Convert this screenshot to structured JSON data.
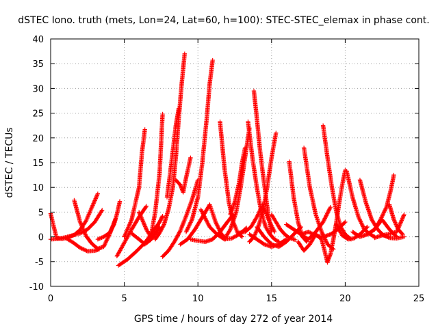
{
  "chart_data": {
    "type": "scatter",
    "title": "dSTEC Iono. truth (mets, Lon=24, Lat=60, h=100): STEC-STEC_elemax in phase cont.",
    "xlabel": "GPS time / hours of day 272 of year 2014",
    "ylabel": "dSTEC  / TECUs",
    "xlim": [
      0,
      25
    ],
    "ylim": [
      -10,
      40
    ],
    "x_ticks": [
      "0",
      "5",
      "10",
      "15",
      "20",
      "25"
    ],
    "y_ticks": [
      "-10",
      "-5",
      "0",
      "5",
      "10",
      "15",
      "20",
      "25",
      "30",
      "35",
      "40"
    ],
    "grid": true,
    "marker": "+",
    "marker_color": "#ff0000",
    "series": [
      {
        "x": [
          0.0,
          0.4,
          0.8,
          1.2,
          1.6,
          2.0,
          2.4,
          2.8,
          3.2
        ],
        "y": [
          4.7,
          -0.2,
          -0.4,
          -0.1,
          0.4,
          1.4,
          3.2,
          6.0,
          8.7
        ]
      },
      {
        "x": [
          0.0,
          0.5,
          1.0,
          1.5,
          2.0,
          2.5,
          3.0,
          3.5
        ],
        "y": [
          -0.5,
          -0.4,
          -0.1,
          0.3,
          0.7,
          1.5,
          3.0,
          5.4
        ]
      },
      {
        "x": [
          1.6,
          2.0,
          2.4,
          2.8,
          3.2,
          3.6,
          4.0,
          4.4
        ],
        "y": [
          7.4,
          3.0,
          0.2,
          -1.4,
          -2.4,
          -2.0,
          0.5,
          3.6
        ]
      },
      {
        "x": [
          1.0,
          1.5,
          2.0,
          2.5,
          3.0,
          3.3
        ],
        "y": [
          -0.2,
          -1.1,
          -2.2,
          -2.9,
          -2.8,
          -2.5
        ]
      },
      {
        "x": [
          3.2,
          3.6,
          4.0,
          4.3,
          4.5,
          4.7
        ],
        "y": [
          -0.5,
          0.0,
          0.8,
          2.5,
          4.6,
          7.2
        ]
      },
      {
        "x": [
          4.5,
          5.0,
          5.5,
          6.0,
          6.5
        ],
        "y": [
          -3.9,
          -1.2,
          1.5,
          4.0,
          6.2
        ]
      },
      {
        "x": [
          4.6,
          5.2,
          5.8,
          6.4,
          6.9,
          7.4,
          7.6
        ],
        "y": [
          -5.8,
          -4.6,
          -3.0,
          -1.2,
          0.8,
          3.0,
          4.2
        ]
      },
      {
        "x": [
          5.0,
          5.5,
          6.0,
          6.2,
          6.4
        ],
        "y": [
          0.0,
          3.5,
          10.0,
          17.0,
          21.7
        ]
      },
      {
        "x": [
          5.5,
          6.0,
          6.4,
          6.8,
          7.2,
          7.4
        ],
        "y": [
          0.7,
          -0.5,
          -1.5,
          -0.6,
          1.0,
          2.0
        ]
      },
      {
        "x": [
          6.0,
          6.5,
          6.8,
          7.1,
          7.4,
          7.6
        ],
        "y": [
          5.0,
          1.5,
          0.0,
          5.0,
          13.0,
          24.8
        ]
      },
      {
        "x": [
          7.1,
          7.4,
          7.7,
          8.0,
          8.3,
          8.5,
          8.7,
          8.9,
          9.1
        ],
        "y": [
          -0.5,
          0.8,
          2.5,
          5.5,
          10.0,
          16.0,
          24.0,
          31.0,
          37.0
        ]
      },
      {
        "x": [
          7.6,
          8.0,
          8.4,
          8.8,
          9.2,
          9.6,
          10.0
        ],
        "y": [
          -4.0,
          -2.8,
          -1.0,
          1.2,
          4.2,
          7.5,
          11.5
        ]
      },
      {
        "x": [
          7.9,
          8.1,
          8.3,
          8.5,
          8.7
        ],
        "y": [
          8.0,
          12.5,
          17.5,
          22.5,
          26.0
        ]
      },
      {
        "x": [
          8.5,
          8.8,
          9.0,
          9.2,
          9.5
        ],
        "y": [
          11.5,
          10.5,
          9.0,
          12.0,
          16.0
        ]
      },
      {
        "x": [
          8.8,
          9.3,
          9.8,
          10.3,
          10.8,
          11.2,
          11.6,
          11.8
        ],
        "y": [
          -1.5,
          -0.5,
          1.5,
          4.0,
          6.5,
          3.0,
          0.5,
          0.0
        ]
      },
      {
        "x": [
          9.2,
          9.6,
          10.0,
          10.3,
          10.6,
          10.8,
          11.0
        ],
        "y": [
          1.0,
          3.5,
          8.0,
          15.0,
          24.0,
          31.0,
          35.7
        ]
      },
      {
        "x": [
          9.5,
          10.0,
          10.5,
          11.0,
          11.5,
          12.0,
          12.4
        ],
        "y": [
          -0.5,
          -0.8,
          -1.0,
          -0.5,
          1.0,
          3.0,
          4.5
        ]
      },
      {
        "x": [
          10.2,
          10.8,
          11.3,
          11.8,
          12.3,
          12.8,
          13.3
        ],
        "y": [
          5.5,
          2.0,
          0.5,
          -0.5,
          -0.3,
          0.5,
          1.8
        ]
      },
      {
        "x": [
          11.5,
          11.8,
          12.1,
          12.4,
          12.7,
          13.0
        ],
        "y": [
          23.3,
          14.0,
          7.0,
          3.0,
          0.8,
          0.0
        ]
      },
      {
        "x": [
          11.8,
          12.2,
          12.6,
          12.9,
          13.2,
          13.5
        ],
        "y": [
          -0.5,
          1.5,
          5.0,
          10.0,
          16.0,
          22.0
        ]
      },
      {
        "x": [
          12.2,
          12.5,
          12.8,
          13.0,
          13.2
        ],
        "y": [
          4.5,
          7.0,
          11.0,
          15.0,
          18.0
        ]
      },
      {
        "x": [
          12.8,
          13.2,
          13.6,
          14.0,
          14.4,
          14.8,
          15.2
        ],
        "y": [
          0.8,
          1.0,
          2.0,
          4.0,
          6.5,
          3.5,
          1.0
        ]
      },
      {
        "x": [
          13.4,
          13.7,
          14.0,
          14.3,
          14.6,
          14.9,
          15.2,
          15.5
        ],
        "y": [
          23.3,
          16.0,
          10.0,
          5.0,
          2.0,
          0.5,
          -0.5,
          -1.0
        ]
      },
      {
        "x": [
          13.8,
          14.0,
          14.2,
          14.4,
          14.6,
          14.8,
          15.0
        ],
        "y": [
          29.5,
          24.0,
          18.0,
          13.0,
          8.5,
          4.0,
          1.0
        ]
      },
      {
        "x": [
          13.5,
          13.8,
          14.1,
          14.4,
          14.7,
          15.0,
          15.3
        ],
        "y": [
          -1.0,
          0.0,
          2.0,
          5.0,
          10.0,
          16.0,
          21.0
        ]
      },
      {
        "x": [
          14.0,
          14.5,
          15.0,
          15.5,
          16.0,
          16.5,
          17.0
        ],
        "y": [
          2.0,
          0.0,
          -1.5,
          -2.0,
          -1.0,
          0.5,
          2.0
        ]
      },
      {
        "x": [
          13.5,
          14.0,
          14.5,
          15.0,
          15.5,
          16.0
        ],
        "y": [
          0.5,
          -0.5,
          -1.5,
          -2.0,
          -1.5,
          -0.5
        ]
      },
      {
        "x": [
          15.0,
          15.3,
          15.6,
          15.9,
          16.2,
          16.6
        ],
        "y": [
          4.5,
          3.0,
          1.5,
          0.5,
          -0.2,
          -0.6
        ]
      },
      {
        "x": [
          16.2,
          16.5,
          16.8,
          17.1,
          17.4
        ],
        "y": [
          15.2,
          8.0,
          3.0,
          0.0,
          -1.0
        ]
      },
      {
        "x": [
          16.0,
          16.5,
          17.0,
          17.5,
          18.0,
          18.5,
          19.0
        ],
        "y": [
          2.5,
          1.5,
          0.5,
          -0.5,
          1.0,
          3.0,
          6.0
        ]
      },
      {
        "x": [
          17.0,
          17.5,
          18.0,
          18.5,
          19.0,
          19.5,
          20.0
        ],
        "y": [
          0.5,
          1.0,
          0.3,
          0.0,
          0.5,
          1.5,
          3.0
        ]
      },
      {
        "x": [
          17.2,
          17.6,
          18.0,
          18.4,
          18.8,
          19.2
        ],
        "y": [
          18.0,
          10.0,
          4.5,
          1.0,
          -1.5,
          -2.5
        ]
      },
      {
        "x": [
          16.8,
          17.2,
          17.6,
          18.0,
          18.4,
          18.8
        ],
        "y": [
          -1.0,
          -2.8,
          -1.5,
          0.5,
          -0.5,
          -5.2
        ]
      },
      {
        "x": [
          18.5,
          18.8,
          19.1,
          19.4,
          19.7,
          20.0,
          20.4
        ],
        "y": [
          22.5,
          16.0,
          10.0,
          5.0,
          2.0,
          0.5,
          -0.5
        ]
      },
      {
        "x": [
          18.8,
          19.0,
          19.2,
          19.4,
          19.6,
          19.8,
          20.0
        ],
        "y": [
          -5.0,
          -3.5,
          -0.5,
          3.0,
          7.0,
          10.5,
          13.5
        ]
      },
      {
        "x": [
          19.4,
          19.8,
          20.2,
          20.6,
          21.0,
          21.5
        ],
        "y": [
          2.5,
          0.3,
          -0.5,
          -0.3,
          0.5,
          2.0
        ]
      },
      {
        "x": [
          20.1,
          20.5,
          20.9,
          21.3,
          21.7,
          22.0
        ],
        "y": [
          13.3,
          8.0,
          4.0,
          1.5,
          0.5,
          0.0
        ]
      },
      {
        "x": [
          20.5,
          21.0,
          21.5,
          22.0,
          22.5,
          23.0,
          23.5
        ],
        "y": [
          1.0,
          0.0,
          0.5,
          1.5,
          3.5,
          1.5,
          0.0
        ]
      },
      {
        "x": [
          21.0,
          21.4,
          21.8,
          22.2,
          22.6,
          23.0
        ],
        "y": [
          11.5,
          7.0,
          3.5,
          1.5,
          0.3,
          0.0
        ]
      },
      {
        "x": [
          21.5,
          22.0,
          22.4,
          22.8,
          23.1,
          23.3
        ],
        "y": [
          0.5,
          1.5,
          3.5,
          6.0,
          9.5,
          12.5
        ]
      },
      {
        "x": [
          22.0,
          22.5,
          23.0,
          23.5,
          24.0
        ],
        "y": [
          -0.2,
          0.3,
          0.6,
          1.0,
          4.5
        ]
      },
      {
        "x": [
          22.5,
          23.0,
          23.5,
          24.0
        ],
        "y": [
          0.5,
          -0.2,
          -0.3,
          0.0
        ]
      },
      {
        "x": [
          23.0,
          23.3,
          23.6,
          23.9
        ],
        "y": [
          6.5,
          3.5,
          1.5,
          0.5
        ]
      }
    ]
  }
}
